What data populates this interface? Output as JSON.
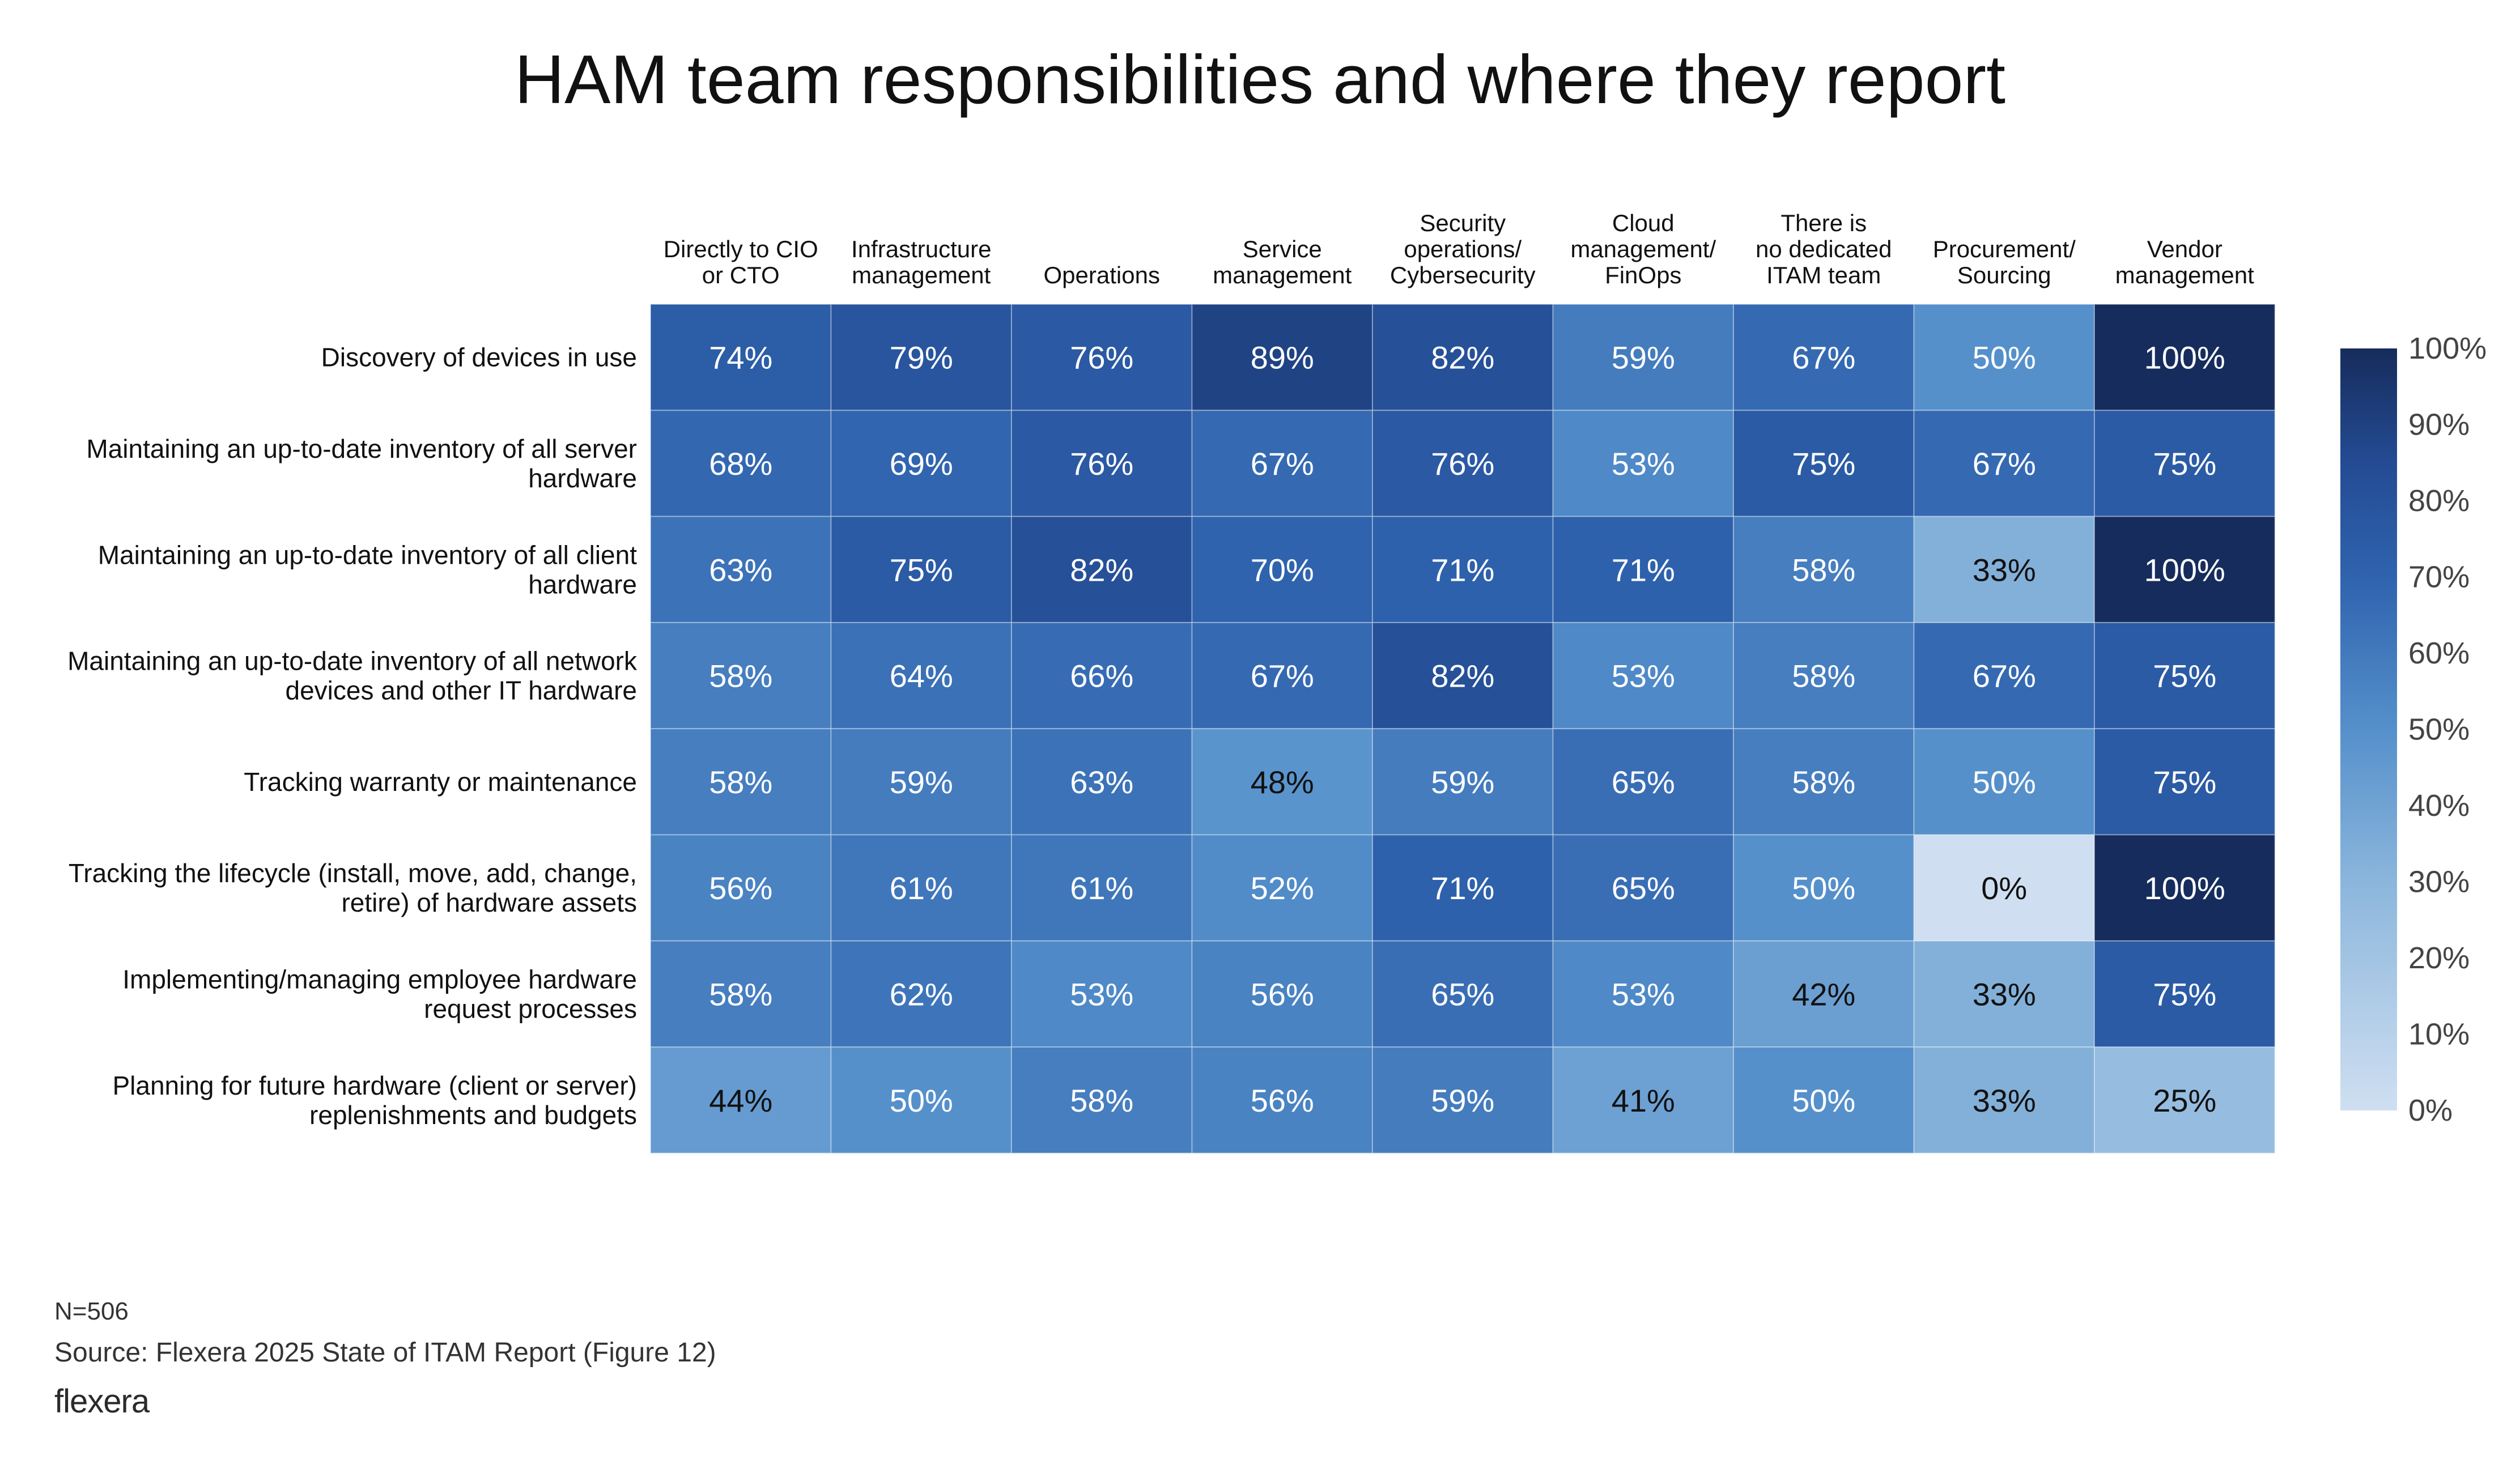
{
  "chart_data": {
    "type": "heatmap",
    "title": "HAM team responsibilities and where they report",
    "columns": [
      [
        "Directly to CIO",
        "or CTO"
      ],
      [
        "Infrastructure",
        "management"
      ],
      [
        "Operations"
      ],
      [
        "Service",
        "management"
      ],
      [
        "Security",
        "operations/",
        "Cybersecurity"
      ],
      [
        "Cloud",
        "management/",
        "FinOps"
      ],
      [
        "There is",
        "no dedicated",
        "ITAM team"
      ],
      [
        "Procurement/",
        "Sourcing"
      ],
      [
        "Vendor",
        "management"
      ]
    ],
    "rows": [
      [
        "Discovery of devices in use"
      ],
      [
        "Maintaining an up-to-date inventory of all server",
        "hardware"
      ],
      [
        "Maintaining an up-to-date inventory of all client",
        "hardware"
      ],
      [
        "Maintaining an up-to-date inventory of all network",
        "devices and other IT hardware"
      ],
      [
        "Tracking warranty or maintenance"
      ],
      [
        "Tracking the lifecycle (install, move, add, change,",
        "retire) of hardware assets"
      ],
      [
        "Implementing/managing employee hardware",
        "request processes"
      ],
      [
        "Planning for future hardware (client or server)",
        "replenishments and budgets"
      ]
    ],
    "values": [
      [
        74,
        79,
        76,
        89,
        82,
        59,
        67,
        50,
        100
      ],
      [
        68,
        69,
        76,
        67,
        76,
        53,
        75,
        67,
        75
      ],
      [
        63,
        75,
        82,
        70,
        71,
        71,
        58,
        33,
        100
      ],
      [
        58,
        64,
        66,
        67,
        82,
        53,
        58,
        67,
        75
      ],
      [
        58,
        59,
        63,
        48,
        59,
        65,
        58,
        50,
        75
      ],
      [
        56,
        61,
        61,
        52,
        71,
        65,
        50,
        0,
        100
      ],
      [
        58,
        62,
        53,
        56,
        65,
        53,
        42,
        33,
        75
      ],
      [
        44,
        50,
        58,
        56,
        59,
        41,
        50,
        33,
        25
      ]
    ],
    "value_suffix": "%",
    "colorbar": {
      "min": 0,
      "max": 100,
      "ticks": [
        "0%",
        "10%",
        "20%",
        "30%",
        "40%",
        "50%",
        "60%",
        "70%",
        "80%",
        "90%",
        "100%"
      ],
      "color_low": "#cfdff1",
      "color_high": "#162c5c"
    }
  },
  "footer": {
    "n": "N=506",
    "source": "Source: Flexera 2025 State of ITAM Report (Figure 12)",
    "logo": "flexera"
  }
}
